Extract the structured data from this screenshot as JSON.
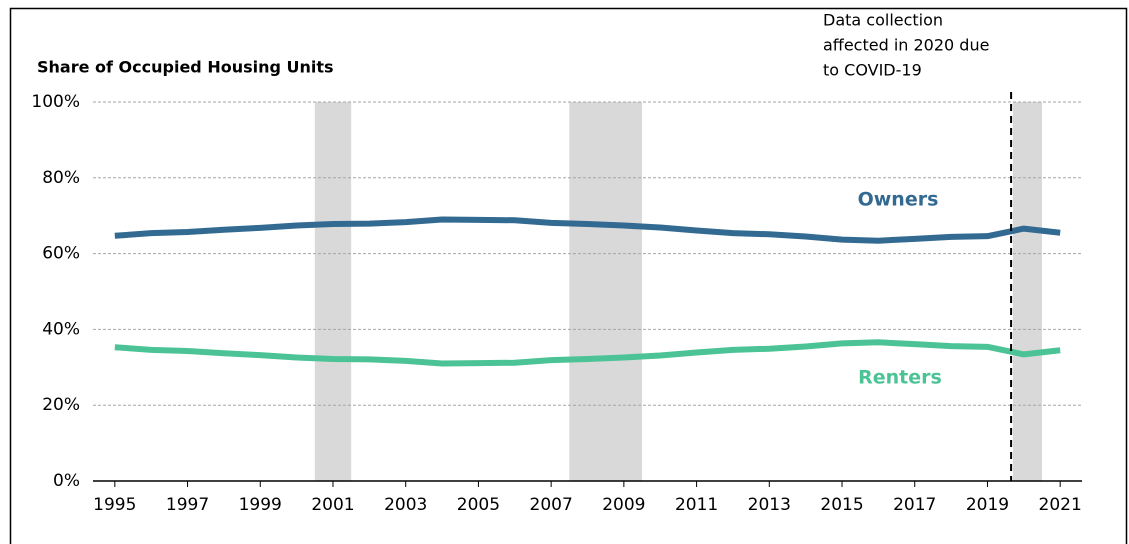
{
  "chart_data": {
    "type": "line",
    "title": "Share of Occupied Housing Units",
    "x": [
      1995,
      1996,
      1997,
      1998,
      1999,
      2000,
      2001,
      2002,
      2003,
      2004,
      2005,
      2006,
      2007,
      2008,
      2009,
      2010,
      2011,
      2012,
      2013,
      2014,
      2015,
      2016,
      2017,
      2018,
      2019,
      2020,
      2021
    ],
    "series": [
      {
        "name": "Owners",
        "color": "#336a92",
        "values": [
          64.7,
          65.4,
          65.7,
          66.3,
          66.8,
          67.4,
          67.8,
          67.9,
          68.3,
          69.0,
          68.9,
          68.8,
          68.1,
          67.8,
          67.4,
          66.9,
          66.1,
          65.4,
          65.1,
          64.5,
          63.7,
          63.4,
          63.9,
          64.4,
          64.6,
          66.6,
          65.5
        ]
      },
      {
        "name": "Renters",
        "color": "#4cc396",
        "values": [
          35.3,
          34.6,
          34.3,
          33.7,
          33.2,
          32.6,
          32.2,
          32.1,
          31.7,
          31.0,
          31.1,
          31.2,
          31.9,
          32.2,
          32.6,
          33.1,
          33.9,
          34.6,
          34.9,
          35.5,
          36.3,
          36.6,
          36.1,
          35.6,
          35.4,
          33.4,
          34.5
        ]
      }
    ],
    "xlim": [
      1994.4,
      2021.6
    ],
    "xticks": [
      1995,
      1997,
      1999,
      2001,
      2003,
      2005,
      2007,
      2009,
      2011,
      2013,
      2015,
      2017,
      2019,
      2021
    ],
    "ylim": [
      0,
      100
    ],
    "yticks": [
      {
        "value": 0,
        "label": "0%"
      },
      {
        "value": 20,
        "label": "20%"
      },
      {
        "value": 40,
        "label": "40%"
      },
      {
        "value": 60,
        "label": "60%"
      },
      {
        "value": 80,
        "label": "80%"
      },
      {
        "value": 100,
        "label": "100%"
      }
    ],
    "grid": true,
    "shaded_periods": [
      [
        2000.5,
        2001.5
      ],
      [
        2007.5,
        2009.5
      ],
      [
        2019.7,
        2020.5
      ]
    ],
    "annotation": {
      "x": 2019.65,
      "lines": [
        "Data collection",
        "affected in 2020 due",
        "to COVID-19"
      ]
    }
  }
}
